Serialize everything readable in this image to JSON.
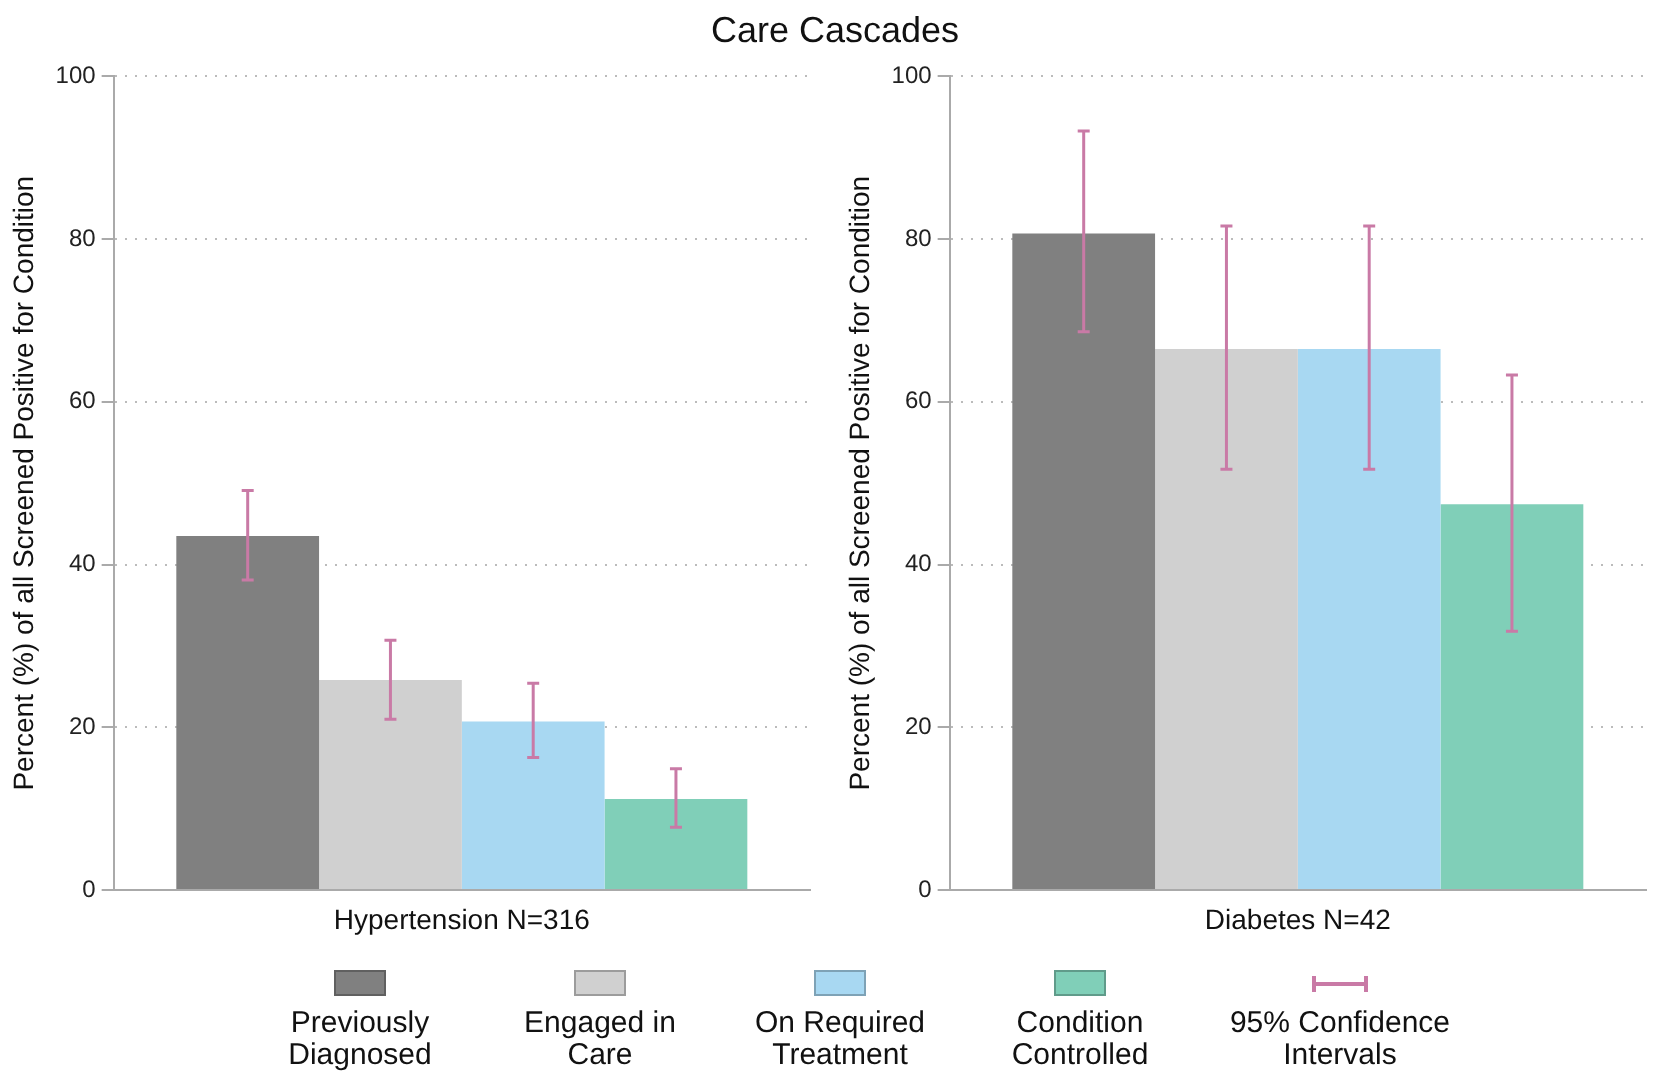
{
  "chart_data": [
    {
      "type": "bar",
      "title": "Care Cascades",
      "xlabel": "Hypertension N=316",
      "ylabel": "Percent (%) of all Screened Positive for Condition",
      "categories": [
        null
      ],
      "series": [
        {
          "name": "Previously Diagnosed",
          "color": "#808080",
          "values": [
            43.5
          ],
          "errors": [
            [
              38.1,
              49.1
            ]
          ]
        },
        {
          "name": "Engaged in Care",
          "color": "#d0d0d0",
          "values": [
            25.8
          ],
          "errors": [
            [
              21.0,
              30.7
            ]
          ]
        },
        {
          "name": "On Required Treatment",
          "color": "#a8d8f2",
          "values": [
            20.7
          ],
          "errors": [
            [
              16.3,
              25.4
            ]
          ]
        },
        {
          "name": "Condition Controlled",
          "color": "#80cfb8",
          "values": [
            11.2
          ],
          "errors": [
            [
              7.7,
              14.9
            ]
          ]
        }
      ],
      "annotations": [
        "95% Confidence Intervals"
      ],
      "ylim": [
        0,
        100
      ],
      "yticks": [
        0,
        20,
        40,
        60,
        80,
        100
      ],
      "grid": "y",
      "legend": "bottom"
    },
    {
      "type": "bar",
      "xlabel": "Diabetes N=42",
      "ylabel": "Percent (%) of all Screened Positive for Condition",
      "categories": [
        null
      ],
      "series": [
        {
          "name": "Previously Diagnosed",
          "color": "#808080",
          "values": [
            80.7
          ],
          "errors": [
            [
              68.6,
              93.3
            ]
          ]
        },
        {
          "name": "Engaged in Care",
          "color": "#d0d0d0",
          "values": [
            66.5
          ],
          "errors": [
            [
              51.7,
              81.6
            ]
          ]
        },
        {
          "name": "On Required Treatment",
          "color": "#a8d8f2",
          "values": [
            66.5
          ],
          "errors": [
            [
              51.7,
              81.6
            ]
          ]
        },
        {
          "name": "Condition Controlled",
          "color": "#80cfb8",
          "values": [
            47.4
          ],
          "errors": [
            [
              31.8,
              63.3
            ]
          ]
        }
      ],
      "ylim": [
        0,
        100
      ],
      "yticks": [
        0,
        20,
        40,
        60,
        80,
        100
      ],
      "grid": "y",
      "legend": "bottom"
    }
  ]
}
